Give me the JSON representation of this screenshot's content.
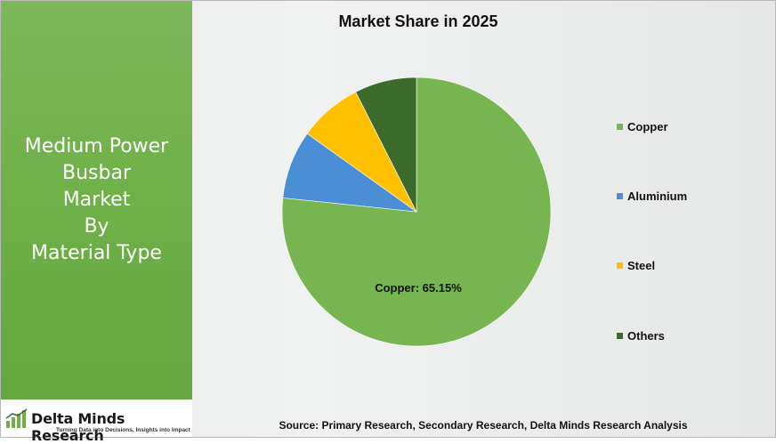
{
  "side_title": [
    "Medium Power",
    "Busbar",
    "Market",
    "By",
    "Material Type"
  ],
  "brand": {
    "name": "Delta Minds Research",
    "tagline": "Turning Data into Decisions, Insights into Impact"
  },
  "source": "Source: Primary Research, Secondary Research, Delta Minds Research Analysis",
  "colors": {
    "panel_green": "#6fb048",
    "copper": "#76b54f",
    "aluminium": "#4a8fd6",
    "steel": "#ffc000",
    "others": "#3b6a2a"
  },
  "chart_data": {
    "type": "pie",
    "title": "Market Share in 2025",
    "categories": [
      "Copper",
      "Aluminium",
      "Steel",
      "Others"
    ],
    "values": [
      65.15,
      7.0,
      6.5,
      6.35
    ],
    "data_labels": [
      "Copper: 65.15%",
      "",
      "",
      ""
    ],
    "legend_position": "right",
    "start_angle": "top, clockwise"
  }
}
